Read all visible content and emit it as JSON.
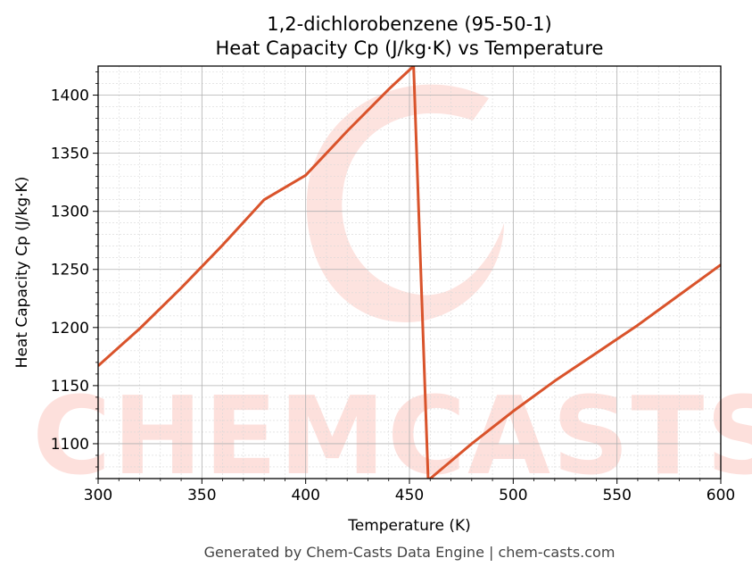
{
  "chart_data": {
    "type": "line",
    "title": "1,2-dichlorobenzene (95-50-1)",
    "subtitle": "Heat Capacity Cp (J/kg·K) vs Temperature",
    "xlabel": "Temperature (K)",
    "ylabel": "Heat Capacity Cp (J/kg·K)",
    "xlim": [
      300,
      600
    ],
    "ylim": [
      1070,
      1425
    ],
    "xticks": [
      300,
      350,
      400,
      450,
      500,
      550,
      600
    ],
    "yticks": [
      1100,
      1150,
      1200,
      1250,
      1300,
      1350,
      1400
    ],
    "grid": true,
    "line_color": "#d9532b",
    "series": [
      {
        "name": "",
        "x": [
          300,
          320,
          340,
          360,
          380,
          400,
          420,
          440,
          452,
          459,
          460,
          480,
          500,
          520,
          540,
          560,
          580,
          600
        ],
        "y": [
          1167,
          1199,
          1234,
          1271,
          1310,
          1331,
          1369,
          1405,
          1425,
          1070,
          1070,
          1100,
          1128,
          1154,
          1178,
          1202,
          1228,
          1254
        ]
      }
    ]
  },
  "watermark": {
    "text": "CHEMCASTS",
    "color": "#fde0dc"
  },
  "footer": {
    "text": "Generated by Chem-Casts Data Engine | chem-casts.com"
  }
}
